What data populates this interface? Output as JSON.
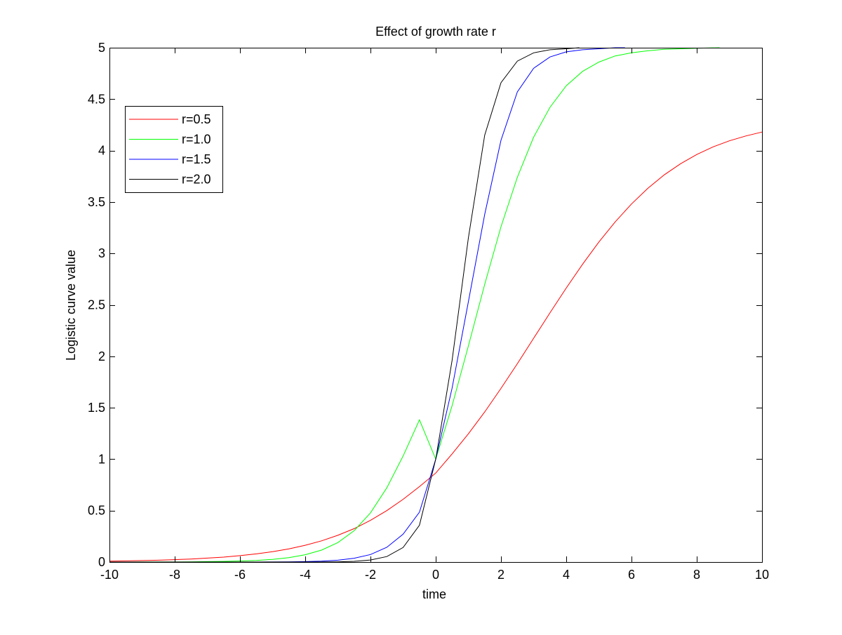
{
  "chart_data": {
    "type": "line",
    "title": "Effect of growth rate r",
    "xlabel": "time",
    "ylabel": "Logistic curve value",
    "xlim": [
      -10,
      10
    ],
    "ylim": [
      0,
      5
    ],
    "xticks": [
      -10,
      -8,
      -6,
      -4,
      -2,
      0,
      2,
      4,
      6,
      8,
      10
    ],
    "yticks": [
      0,
      0.5,
      1,
      1.5,
      2,
      2.5,
      3,
      3.5,
      4,
      4.5,
      5
    ],
    "xtick_labels": [
      "-10",
      "-8",
      "-6",
      "-4",
      "-2",
      "0",
      "2",
      "4",
      "6",
      "8",
      "10"
    ],
    "ytick_labels": [
      "0",
      "0.5",
      "1",
      "1.5",
      "2",
      "2.5",
      "3",
      "3.5",
      "4",
      "4.5",
      "5"
    ],
    "grid": false,
    "legend_position": "top-left",
    "series": [
      {
        "name": "r=0.5",
        "color": "#ff0000",
        "x": [
          -10,
          -9.5,
          -9,
          -8.5,
          -8,
          -7.5,
          -7,
          -6.5,
          -6,
          -5.5,
          -5,
          -4.5,
          -4,
          -3.5,
          -3,
          -2.5,
          -2,
          -1.5,
          -1,
          -0.5,
          0,
          0.5,
          1,
          1.5,
          2,
          2.5,
          3,
          3.5,
          4,
          4.5,
          5,
          5.5,
          6,
          6.5,
          7,
          7.5,
          8,
          8.5,
          9,
          9.5,
          10
        ],
        "y": [
          0.008,
          0.011,
          0.014,
          0.018,
          0.023,
          0.029,
          0.038,
          0.048,
          0.062,
          0.079,
          0.1,
          0.128,
          0.163,
          0.206,
          0.26,
          0.325,
          0.405,
          0.5,
          0.61,
          0.733,
          0.865,
          1.051,
          1.246,
          1.459,
          1.688,
          1.928,
          2.175,
          2.422,
          2.664,
          2.895,
          3.111,
          3.307,
          3.481,
          3.633,
          3.763,
          3.872,
          3.962,
          4.036,
          4.095,
          4.142,
          4.18
        ]
      },
      {
        "name": "r=1.0",
        "color": "#00ff00",
        "x": [
          -10,
          -9.5,
          -9,
          -8.5,
          -8,
          -7.5,
          -7,
          -6.5,
          -6,
          -5.5,
          -5,
          -4.5,
          -4,
          -3.5,
          -3,
          -2.5,
          -2,
          -1.5,
          -1,
          -0.5,
          0,
          0.5,
          1,
          1.5,
          2,
          2.5,
          3,
          3.5,
          4,
          4.5,
          5,
          5.5,
          6,
          6.5,
          7,
          7.5,
          8,
          8.7
        ],
        "y": [
          0,
          0,
          0.001,
          0.001,
          0.001,
          0.002,
          0.004,
          0.006,
          0.01,
          0.016,
          0.026,
          0.043,
          0.071,
          0.116,
          0.189,
          0.305,
          0.478,
          0.722,
          1.031,
          1.382,
          1.0,
          1.52,
          2.1,
          2.7,
          3.26,
          3.74,
          4.13,
          4.42,
          4.63,
          4.77,
          4.86,
          4.92,
          4.95,
          4.97,
          4.985,
          4.99,
          4.995,
          5.0
        ]
      },
      {
        "name": "r=1.5",
        "color": "#0000ff",
        "x": [
          -10,
          -9.5,
          -9,
          -8.5,
          -8,
          -7.5,
          -7,
          -6.5,
          -6,
          -5.5,
          -5,
          -4.5,
          -4,
          -3.5,
          -3,
          -2.5,
          -2,
          -1.5,
          -1,
          -0.5,
          0,
          0.5,
          1,
          1.5,
          2,
          2.5,
          3,
          3.5,
          4,
          4.5,
          5,
          5.5,
          5.8
        ],
        "y": [
          0,
          0,
          0,
          0,
          0,
          0,
          0,
          0,
          0,
          0,
          0.001,
          0.002,
          0.004,
          0.009,
          0.018,
          0.037,
          0.073,
          0.143,
          0.271,
          0.485,
          1.0,
          1.69,
          2.53,
          3.38,
          4.1,
          4.57,
          4.8,
          4.91,
          4.96,
          4.98,
          4.99,
          5.0,
          5.0
        ]
      },
      {
        "name": "r=2.0",
        "color": "#000000",
        "x": [
          -10,
          -9.5,
          -9,
          -8.5,
          -8,
          -7.5,
          -7,
          -6.5,
          -6,
          -5.5,
          -5,
          -4.5,
          -4,
          -3.5,
          -3,
          -2.5,
          -2,
          -1.5,
          -1,
          -0.5,
          0,
          0.5,
          1,
          1.5,
          2,
          2.5,
          3,
          3.5,
          4,
          4.4
        ],
        "y": [
          0,
          0,
          0,
          0,
          0,
          0,
          0,
          0,
          0,
          0,
          0,
          0,
          0,
          0.001,
          0.002,
          0.007,
          0.02,
          0.053,
          0.141,
          0.358,
          1.0,
          1.96,
          3.15,
          4.15,
          4.66,
          4.87,
          4.95,
          4.98,
          4.99,
          5.0
        ]
      }
    ]
  }
}
